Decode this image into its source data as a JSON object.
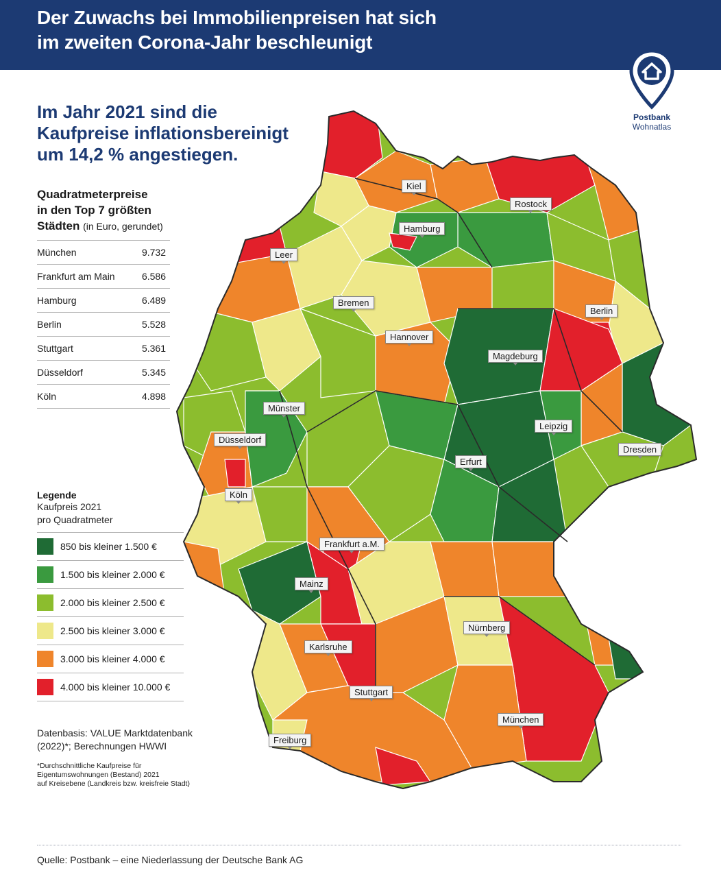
{
  "header": {
    "title_line1": "Der Zuwachs bei Immobilienpreisen hat sich",
    "title_line2": "im zweiten Corona-Jahr beschleunigt"
  },
  "logo": {
    "icon": "house-pin-icon",
    "brand": "Postbank",
    "sub": "Wohnatlas"
  },
  "headline": {
    "line1": "Im Jahr 2021 sind die",
    "line2": "Kaufpreise inflationsbereinigt",
    "line3": "um 14,2 % angestiegen."
  },
  "top_cities": {
    "title_line1": "Quadratmeterpreise",
    "title_line2": "in den Top 7 größten",
    "title_line3": "Städten",
    "unit": "(in Euro, gerundet)",
    "rows": [
      {
        "city": "München",
        "price": "9.732"
      },
      {
        "city": "Frankfurt am Main",
        "price": "6.586"
      },
      {
        "city": "Hamburg",
        "price": "6.489"
      },
      {
        "city": "Berlin",
        "price": "5.528"
      },
      {
        "city": "Stuttgart",
        "price": "5.361"
      },
      {
        "city": "Düsseldorf",
        "price": "5.345"
      },
      {
        "city": "Köln",
        "price": "4.898"
      }
    ]
  },
  "legend": {
    "title": "Legende",
    "sub_line1": "Kaufpreis 2021",
    "sub_line2": "pro Quadratmeter",
    "items": [
      {
        "label": "850 bis kleiner 1.500 €",
        "color": "#1f6b35"
      },
      {
        "label": "1.500 bis kleiner 2.000 €",
        "color": "#3a9a3f"
      },
      {
        "label": "2.000 bis kleiner 2.500 €",
        "color": "#8cbd2e"
      },
      {
        "label": "2.500 bis kleiner 3.000 €",
        "color": "#eee88a"
      },
      {
        "label": "3.000 bis kleiner 4.000 €",
        "color": "#ef852b"
      },
      {
        "label": "4.000 bis kleiner 10.000 €",
        "color": "#e2202b"
      }
    ]
  },
  "source_note": {
    "line1": "Datenbasis: VALUE Marktdatenbank",
    "line2": "(2022)*; Berechnungen HWWI"
  },
  "footnote": {
    "line1": "*Durchschnittliche Kaufpreise für",
    "line2": "Eigentumswohnungen (Bestand) 2021",
    "line3": "auf Kreisebene (Landkreis bzw. kreisfreie Stadt)"
  },
  "quelle": "Quelle: Postbank – eine Niederlassung der Deutsche Bank AG",
  "map": {
    "labels": {
      "kiel": "Kiel",
      "rostock": "Rostock",
      "hamburg": "Hamburg",
      "leer": "Leer",
      "bremen": "Bremen",
      "berlin": "Berlin",
      "hannover": "Hannover",
      "magdeburg": "Magdeburg",
      "muenster": "Münster",
      "duesseldorf": "Düsseldorf",
      "leipzig": "Leipzig",
      "dresden": "Dresden",
      "erfurt": "Erfurt",
      "koeln": "Köln",
      "frankfurt": "Frankfurt a.M.",
      "mainz": "Mainz",
      "nuernberg": "Nürnberg",
      "karlsruhe": "Karlsruhe",
      "stuttgart": "Stuttgart",
      "muenchen": "München",
      "freiburg": "Freiburg"
    }
  }
}
